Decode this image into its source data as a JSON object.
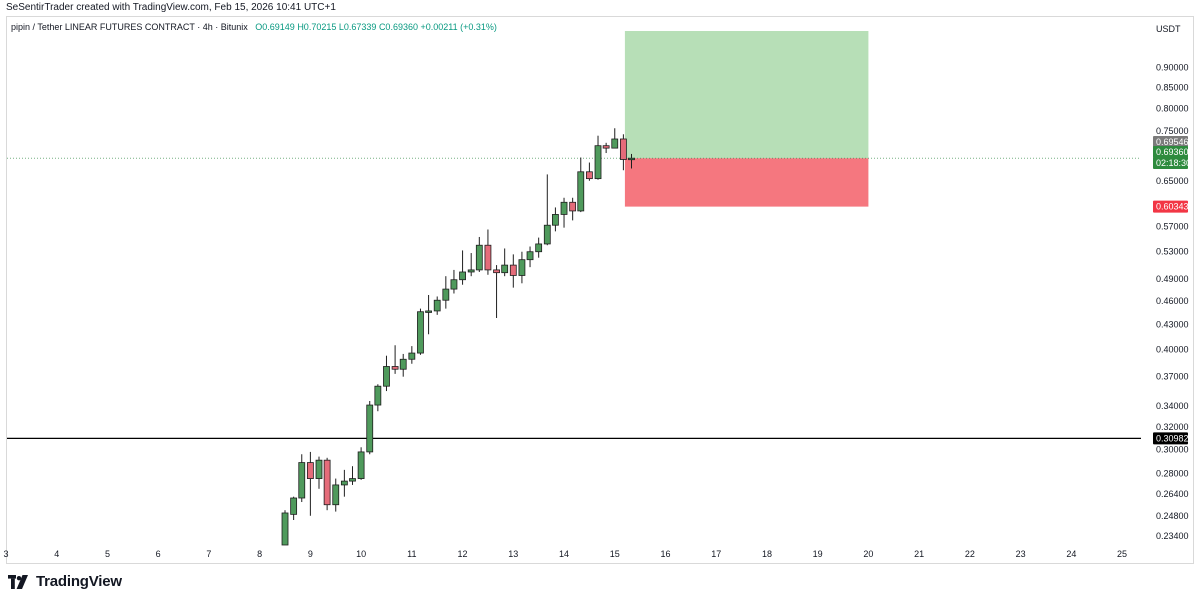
{
  "header": {
    "credit": "SeSentirTrader created with TradingView.com, Feb 15, 2026 10:41 UTC+1"
  },
  "legend": {
    "symbol": "pipin / Tether LINEAR FUTURES CONTRACT · 4h · Bitunix",
    "open": "O0.69149",
    "high": "H0.70215",
    "low": "L0.67339",
    "close": "C0.69360",
    "change": "+0.00211 (+0.31%)"
  },
  "price_axis": {
    "currency": "USDT",
    "ticks": [
      "0.90000",
      "0.85000",
      "0.80000",
      "0.75000",
      "0.65000",
      "0.57000",
      "0.53000",
      "0.49000",
      "0.46000",
      "0.43000",
      "0.40000",
      "0.37000",
      "0.34000",
      "0.32000",
      "0.30000",
      "0.28000",
      "0.26400",
      "0.24800",
      "0.23400"
    ],
    "badges": {
      "previous": "0.69546",
      "last": "0.69360",
      "countdown": "02:18:30",
      "stop": "0.60343",
      "level": "0.30982"
    }
  },
  "time_axis": {
    "labels": [
      "3",
      "4",
      "5",
      "6",
      "7",
      "8",
      "9",
      "10",
      "11",
      "12",
      "13",
      "14",
      "15",
      "16",
      "17",
      "18",
      "19",
      "20",
      "21",
      "22",
      "23",
      "24",
      "25"
    ]
  },
  "colors": {
    "up": "#4f9a5c",
    "down": "#e56c7a",
    "profit_zone": "#b7dfb7",
    "loss_zone": "#f5777f",
    "last_price_badge": "#2e8b3e",
    "prev_price_badge": "#7b7b7b",
    "stop_badge": "#f23645",
    "level_line": "#000000"
  },
  "brand": {
    "name": "TradingView"
  },
  "chart_data": {
    "type": "candlestick",
    "timeframe": "4h",
    "x_axis": {
      "range_days": [
        3,
        25
      ]
    },
    "y_axis": {
      "scale": "log",
      "range": [
        0.228,
        1.0
      ]
    },
    "horizontal_line": 0.30982,
    "position": {
      "entry": 0.6936,
      "target": 1.0,
      "stop": 0.60343,
      "start_day": 15.2,
      "end_day": 20.0
    },
    "candles": [
      {
        "t": 8.5,
        "o": 0.228,
        "h": 0.252,
        "l": 0.228,
        "c": 0.25
      },
      {
        "t": 8.67,
        "o": 0.249,
        "h": 0.262,
        "l": 0.245,
        "c": 0.261
      },
      {
        "t": 8.83,
        "o": 0.261,
        "h": 0.296,
        "l": 0.258,
        "c": 0.289
      },
      {
        "t": 9.0,
        "o": 0.289,
        "h": 0.298,
        "l": 0.248,
        "c": 0.276
      },
      {
        "t": 9.17,
        "o": 0.276,
        "h": 0.294,
        "l": 0.268,
        "c": 0.291
      },
      {
        "t": 9.33,
        "o": 0.291,
        "h": 0.293,
        "l": 0.252,
        "c": 0.256
      },
      {
        "t": 9.5,
        "o": 0.256,
        "h": 0.276,
        "l": 0.251,
        "c": 0.271
      },
      {
        "t": 9.67,
        "o": 0.271,
        "h": 0.283,
        "l": 0.262,
        "c": 0.274
      },
      {
        "t": 9.83,
        "o": 0.274,
        "h": 0.286,
        "l": 0.271,
        "c": 0.276
      },
      {
        "t": 10.0,
        "o": 0.276,
        "h": 0.302,
        "l": 0.275,
        "c": 0.298
      },
      {
        "t": 10.17,
        "o": 0.298,
        "h": 0.345,
        "l": 0.296,
        "c": 0.341
      },
      {
        "t": 10.33,
        "o": 0.341,
        "h": 0.362,
        "l": 0.335,
        "c": 0.36
      },
      {
        "t": 10.5,
        "o": 0.36,
        "h": 0.393,
        "l": 0.355,
        "c": 0.381
      },
      {
        "t": 10.67,
        "o": 0.381,
        "h": 0.405,
        "l": 0.373,
        "c": 0.378
      },
      {
        "t": 10.83,
        "o": 0.378,
        "h": 0.395,
        "l": 0.37,
        "c": 0.389
      },
      {
        "t": 11.0,
        "o": 0.389,
        "h": 0.404,
        "l": 0.384,
        "c": 0.396
      },
      {
        "t": 11.17,
        "o": 0.396,
        "h": 0.45,
        "l": 0.394,
        "c": 0.446
      },
      {
        "t": 11.33,
        "o": 0.446,
        "h": 0.468,
        "l": 0.418,
        "c": 0.447
      },
      {
        "t": 11.5,
        "o": 0.447,
        "h": 0.466,
        "l": 0.442,
        "c": 0.461
      },
      {
        "t": 11.67,
        "o": 0.461,
        "h": 0.494,
        "l": 0.45,
        "c": 0.476
      },
      {
        "t": 11.83,
        "o": 0.476,
        "h": 0.503,
        "l": 0.47,
        "c": 0.489
      },
      {
        "t": 12.0,
        "o": 0.489,
        "h": 0.532,
        "l": 0.482,
        "c": 0.5
      },
      {
        "t": 12.17,
        "o": 0.5,
        "h": 0.528,
        "l": 0.494,
        "c": 0.503
      },
      {
        "t": 12.33,
        "o": 0.503,
        "h": 0.553,
        "l": 0.5,
        "c": 0.54
      },
      {
        "t": 12.5,
        "o": 0.54,
        "h": 0.565,
        "l": 0.496,
        "c": 0.503
      },
      {
        "t": 12.67,
        "o": 0.503,
        "h": 0.51,
        "l": 0.438,
        "c": 0.499
      },
      {
        "t": 12.83,
        "o": 0.499,
        "h": 0.535,
        "l": 0.494,
        "c": 0.51
      },
      {
        "t": 13.0,
        "o": 0.51,
        "h": 0.526,
        "l": 0.478,
        "c": 0.495
      },
      {
        "t": 13.17,
        "o": 0.495,
        "h": 0.53,
        "l": 0.484,
        "c": 0.518
      },
      {
        "t": 13.33,
        "o": 0.518,
        "h": 0.538,
        "l": 0.507,
        "c": 0.53
      },
      {
        "t": 13.5,
        "o": 0.53,
        "h": 0.552,
        "l": 0.521,
        "c": 0.542
      },
      {
        "t": 13.67,
        "o": 0.542,
        "h": 0.662,
        "l": 0.54,
        "c": 0.572
      },
      {
        "t": 13.83,
        "o": 0.572,
        "h": 0.602,
        "l": 0.562,
        "c": 0.59
      },
      {
        "t": 14.0,
        "o": 0.59,
        "h": 0.619,
        "l": 0.568,
        "c": 0.611
      },
      {
        "t": 14.17,
        "o": 0.611,
        "h": 0.619,
        "l": 0.58,
        "c": 0.596
      },
      {
        "t": 14.33,
        "o": 0.596,
        "h": 0.695,
        "l": 0.594,
        "c": 0.667
      },
      {
        "t": 14.5,
        "o": 0.667,
        "h": 0.685,
        "l": 0.65,
        "c": 0.654
      },
      {
        "t": 14.67,
        "o": 0.654,
        "h": 0.74,
        "l": 0.652,
        "c": 0.719
      },
      {
        "t": 14.83,
        "o": 0.719,
        "h": 0.725,
        "l": 0.704,
        "c": 0.714
      },
      {
        "t": 15.0,
        "o": 0.714,
        "h": 0.756,
        "l": 0.714,
        "c": 0.733
      },
      {
        "t": 15.17,
        "o": 0.733,
        "h": 0.743,
        "l": 0.67,
        "c": 0.691
      },
      {
        "t": 15.33,
        "o": 0.69149,
        "h": 0.70215,
        "l": 0.67339,
        "c": 0.6936
      }
    ]
  }
}
